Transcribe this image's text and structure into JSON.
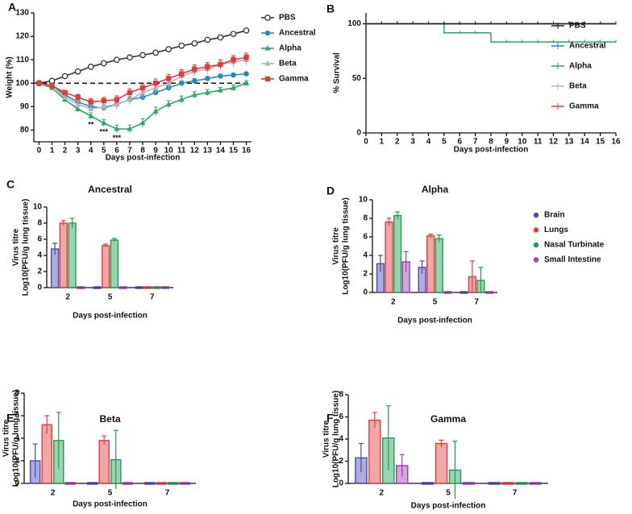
{
  "chart_data": [
    {
      "panel": "A",
      "type": "line",
      "xlabel": "Days post-infection",
      "ylabel": "Weight (%)",
      "x": [
        0,
        1,
        2,
        3,
        4,
        5,
        6,
        7,
        8,
        9,
        10,
        11,
        12,
        13,
        14,
        15,
        16
      ],
      "xlim": [
        -0.4,
        16.4
      ],
      "xticks": [
        0,
        1,
        2,
        3,
        4,
        5,
        6,
        7,
        8,
        9,
        10,
        11,
        12,
        13,
        14,
        15,
        16
      ],
      "ylim": [
        75,
        130
      ],
      "yticks": [
        80,
        90,
        100,
        110,
        120,
        130
      ],
      "reference_line": 100,
      "legend": "right",
      "series": [
        {
          "name": "PBS",
          "color": "#333333",
          "marker": "circle-open",
          "values": [
            100,
            101,
            103,
            105,
            107,
            108.5,
            110,
            111,
            112,
            113,
            114.5,
            116,
            117,
            118.5,
            119.5,
            121,
            122.5
          ],
          "errors": [
            0.3,
            0.3,
            0.4,
            0.4,
            0.4,
            0.4,
            0.4,
            0.4,
            0.4,
            0.4,
            0.4,
            0.4,
            0.4,
            0.4,
            0.4,
            0.4,
            0.4
          ]
        },
        {
          "name": "Ancestral",
          "color": "#1e8bc3",
          "marker": "circle",
          "values": [
            100,
            99,
            95,
            92,
            90,
            89.5,
            91,
            93,
            94,
            96,
            98,
            100,
            101,
            102,
            103,
            103.5,
            104
          ],
          "errors": [
            0.3,
            0.5,
            1,
            1.2,
            1.3,
            1.3,
            1.3,
            1.2,
            1.2,
            1.1,
            1,
            1,
            1,
            0.9,
            0.9,
            0.8,
            0.8
          ]
        },
        {
          "name": "Alpha",
          "color": "#2aa860",
          "marker": "triangle",
          "values": [
            100,
            98,
            93,
            89,
            86,
            83,
            80.5,
            80.5,
            83,
            88,
            91,
            93,
            95,
            96,
            97,
            98,
            100
          ],
          "errors": [
            0.3,
            0.6,
            1,
            1.2,
            1.4,
            1.5,
            1.6,
            1.7,
            1.8,
            1.8,
            1.6,
            1.5,
            1.4,
            1.3,
            1.2,
            1.2,
            1.1
          ]
        },
        {
          "name": "Beta",
          "color": "#b4b4b4",
          "marker": "triangle",
          "values": [
            100,
            99,
            94,
            91,
            89,
            90,
            91,
            93,
            96,
            98,
            100,
            103,
            105,
            106,
            108,
            109,
            110
          ],
          "errors": [
            0.3,
            0.6,
            1.2,
            1.5,
            1.8,
            2,
            2.2,
            2.3,
            2.3,
            2.3,
            2.3,
            2.3,
            2.3,
            2.3,
            2.3,
            2.3,
            2.3
          ]
        },
        {
          "name": "Gamma",
          "color": "#e03c3c",
          "marker": "square",
          "values": [
            100,
            99,
            96,
            94,
            92,
            92.5,
            93,
            96,
            98,
            100,
            102,
            104,
            106,
            107,
            108,
            110,
            111
          ],
          "errors": [
            0.3,
            0.5,
            1,
            1.2,
            1.4,
            1.5,
            1.6,
            1.7,
            1.7,
            1.8,
            1.8,
            1.8,
            1.8,
            1.8,
            1.8,
            1.8,
            1.8
          ]
        }
      ],
      "annotations": [
        {
          "text": "**",
          "x": 4
        },
        {
          "text": "***",
          "x": 5
        },
        {
          "text": "***",
          "x": 6
        }
      ]
    },
    {
      "panel": "B",
      "type": "step",
      "xlabel": "Days post-infection",
      "ylabel": "% Survival",
      "x": [
        0,
        1,
        2,
        3,
        4,
        5,
        6,
        7,
        8,
        9,
        10,
        11,
        12,
        13,
        14,
        15,
        16
      ],
      "xlim": [
        0,
        16
      ],
      "xticks": [
        0,
        1,
        2,
        3,
        4,
        5,
        6,
        7,
        8,
        9,
        10,
        11,
        12,
        13,
        14,
        15,
        16
      ],
      "ylim": [
        0,
        110
      ],
      "yticks": [
        0,
        50,
        100
      ],
      "legend": "upper right",
      "series": [
        {
          "name": "PBS",
          "color": "#222222",
          "values": [
            100,
            100,
            100,
            100,
            100,
            100,
            100,
            100,
            100,
            100,
            100,
            100,
            100,
            100,
            100,
            100,
            100
          ]
        },
        {
          "name": "Ancestral",
          "color": "#1e8bc3",
          "values": [
            100,
            100,
            100,
            100,
            100,
            100,
            100,
            100,
            100,
            100,
            100,
            100,
            100,
            100,
            100,
            100,
            100
          ]
        },
        {
          "name": "Alpha",
          "color": "#2aa860",
          "values": [
            100,
            100,
            100,
            100,
            100,
            91.7,
            91.7,
            91.7,
            83.3,
            83.3,
            83.3,
            83.3,
            83.3,
            83.3,
            83.3,
            83.3,
            83.3
          ]
        },
        {
          "name": "Beta",
          "color": "#b4b4b4",
          "values": [
            100,
            100,
            100,
            100,
            100,
            100,
            100,
            100,
            100,
            100,
            100,
            100,
            100,
            100,
            100,
            100,
            100
          ]
        },
        {
          "name": "Gamma",
          "color": "#e03c3c",
          "values": [
            100,
            100,
            100,
            100,
            100,
            100,
            100,
            100,
            100,
            100,
            100,
            100,
            100,
            100,
            100,
            100,
            100
          ]
        }
      ]
    },
    {
      "panel": "C",
      "type": "bar",
      "title": "Ancestral",
      "xlabel": "Days post-infection",
      "ylabel": [
        "Virus titre",
        "Log10(PFU/g lung tissue)"
      ],
      "categories": [
        "2",
        "5",
        "7"
      ],
      "ylim": [
        0,
        10
      ],
      "yticks": [
        0,
        2,
        4,
        6,
        8,
        10
      ],
      "series": [
        {
          "name": "Brain",
          "color": "#4a4ab4",
          "values": [
            4.8,
            0,
            0
          ],
          "errors": [
            0.7,
            0,
            0
          ]
        },
        {
          "name": "Lungs",
          "color": "#e23c3c",
          "values": [
            8.0,
            5.2,
            0
          ],
          "errors": [
            0.3,
            0.2,
            0
          ]
        },
        {
          "name": "Nasal Turbinate",
          "color": "#1e9e50",
          "values": [
            8.0,
            5.9,
            0
          ],
          "errors": [
            0.6,
            0.2,
            0
          ]
        },
        {
          "name": "Small Intestine",
          "color": "#9c3cb0",
          "values": [
            0,
            0,
            0
          ],
          "errors": [
            0,
            0,
            0
          ]
        }
      ]
    },
    {
      "panel": "D",
      "type": "bar",
      "title": "Alpha",
      "xlabel": "Days post-infection",
      "ylabel": [
        "Virus titre",
        "Log10(PFU/g lung tissue)"
      ],
      "categories": [
        "2",
        "5",
        "7"
      ],
      "ylim": [
        0,
        10
      ],
      "yticks": [
        0,
        2,
        4,
        6,
        8,
        10
      ],
      "legend": "right",
      "series": [
        {
          "name": "Brain",
          "color": "#4a4ab4",
          "values": [
            3.1,
            2.7,
            0
          ],
          "errors": [
            0.9,
            0.7,
            0
          ]
        },
        {
          "name": "Lungs",
          "color": "#e23c3c",
          "values": [
            7.6,
            6.1,
            1.7
          ],
          "errors": [
            0.4,
            0.2,
            1.7
          ]
        },
        {
          "name": "Nasal Turbinate",
          "color": "#1e9e50",
          "values": [
            8.3,
            5.8,
            1.3
          ],
          "errors": [
            0.4,
            0.4,
            1.4
          ]
        },
        {
          "name": "Small Intestine",
          "color": "#9c3cb0",
          "values": [
            3.3,
            0,
            0
          ],
          "errors": [
            1.1,
            0,
            0
          ]
        }
      ]
    },
    {
      "panel": "E",
      "type": "bar",
      "title": "Beta",
      "xlabel": "Days post-infection",
      "ylabel": [
        "Virus titre",
        "Log10(PFU/g lung tissue)"
      ],
      "categories": [
        "2",
        "5",
        "7"
      ],
      "ylim": [
        0,
        8
      ],
      "yticks": [
        0,
        2,
        4,
        6,
        8
      ],
      "series": [
        {
          "name": "Brain",
          "color": "#4a4ab4",
          "values": [
            2.0,
            0,
            0
          ],
          "errors": [
            1.5,
            0,
            0
          ]
        },
        {
          "name": "Lungs",
          "color": "#e23c3c",
          "values": [
            5.2,
            3.8,
            0
          ],
          "errors": [
            0.8,
            0.4,
            0
          ]
        },
        {
          "name": "Nasal Turbinate",
          "color": "#1e9e50",
          "values": [
            3.8,
            2.1,
            0
          ],
          "errors": [
            2.5,
            2.6,
            0
          ]
        },
        {
          "name": "Small Intestine",
          "color": "#9c3cb0",
          "values": [
            0,
            0,
            0
          ],
          "errors": [
            0,
            0,
            0
          ]
        }
      ]
    },
    {
      "panel": "F",
      "type": "bar",
      "title": "Gamma",
      "xlabel": "Days post-infection",
      "ylabel": [
        "Virus titre",
        "Log10(PFU/g lung tissue)"
      ],
      "categories": [
        "2",
        "5",
        "7"
      ],
      "ylim": [
        0,
        8
      ],
      "yticks": [
        0,
        2,
        4,
        6,
        8
      ],
      "series": [
        {
          "name": "Brain",
          "color": "#4a4ab4",
          "values": [
            2.3,
            0,
            0
          ],
          "errors": [
            1.3,
            0,
            0
          ]
        },
        {
          "name": "Lungs",
          "color": "#e23c3c",
          "values": [
            5.7,
            3.6,
            0
          ],
          "errors": [
            0.7,
            0.3,
            0
          ]
        },
        {
          "name": "Nasal Turbinate",
          "color": "#1e9e50",
          "values": [
            4.1,
            1.2,
            0
          ],
          "errors": [
            2.9,
            2.6,
            0
          ]
        },
        {
          "name": "Small Intestine",
          "color": "#9c3cb0",
          "values": [
            1.6,
            0,
            0
          ],
          "errors": [
            1.0,
            0,
            0
          ]
        }
      ]
    }
  ]
}
